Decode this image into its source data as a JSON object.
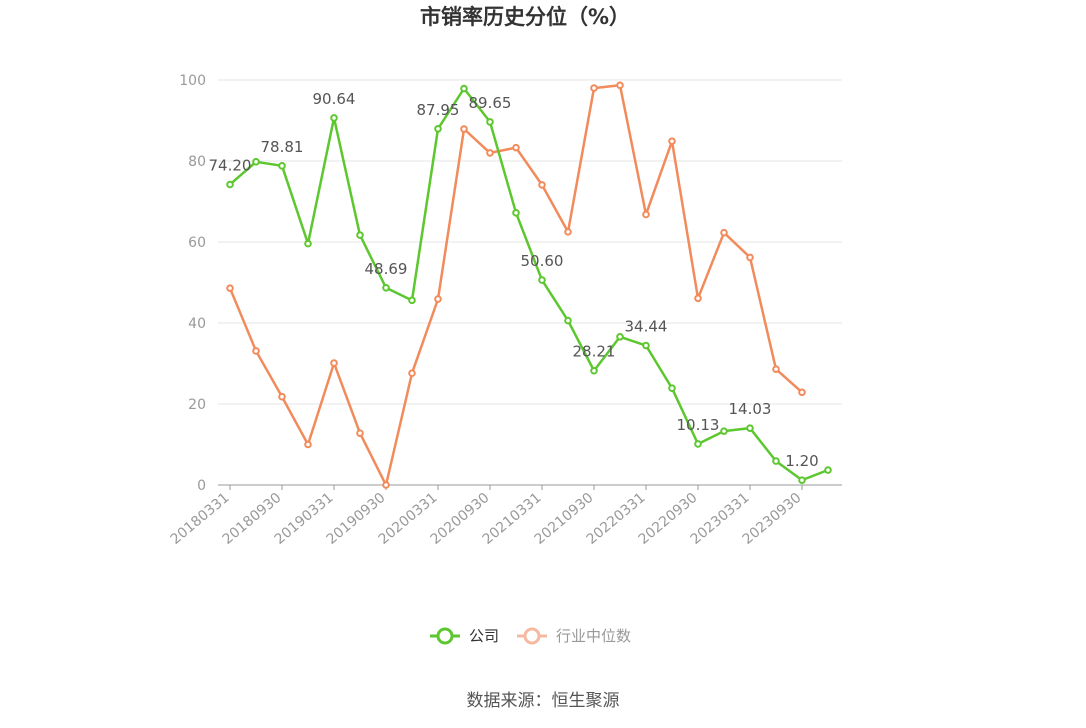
{
  "chart_data": {
    "type": "line",
    "title": "市销率历史分位（%）",
    "ylim": [
      0,
      100
    ],
    "yticks": [
      "0",
      "20",
      "40",
      "60",
      "80",
      "100"
    ],
    "x": [
      "20180331",
      "20180630",
      "20180930",
      "20181231",
      "20190331",
      "20190630",
      "20190930",
      "20191231",
      "20200331",
      "20200630",
      "20200930",
      "20201231",
      "20210331",
      "20210630",
      "20210930",
      "20211231",
      "20220331",
      "20220630",
      "20220930",
      "20221231",
      "20230331",
      "20230630",
      "20230930",
      "20231231"
    ],
    "xtick_labels": [
      "20180331",
      "20180930",
      "20190331",
      "20190930",
      "20200331",
      "20200930",
      "20210331",
      "20210930",
      "20220331",
      "20220930",
      "20230331",
      "20230930"
    ],
    "series": [
      {
        "name": "公司",
        "color": "#5cc72e",
        "values": [
          74.2,
          79.8,
          78.81,
          59.6,
          90.64,
          61.7,
          48.69,
          45.6,
          87.95,
          97.9,
          89.65,
          67.2,
          50.6,
          40.6,
          28.21,
          36.6,
          34.44,
          23.9,
          10.13,
          13.3,
          14.03,
          5.9,
          1.2,
          3.7
        ],
        "labels": [
          {
            "i": 0,
            "text": "74.20"
          },
          {
            "i": 2,
            "text": "78.81"
          },
          {
            "i": 4,
            "text": "90.64"
          },
          {
            "i": 6,
            "text": "48.69"
          },
          {
            "i": 8,
            "text": "87.95"
          },
          {
            "i": 10,
            "text": "89.65"
          },
          {
            "i": 12,
            "text": "50.60"
          },
          {
            "i": 14,
            "text": "28.21"
          },
          {
            "i": 16,
            "text": "34.44"
          },
          {
            "i": 18,
            "text": "10.13"
          },
          {
            "i": 20,
            "text": "14.03"
          },
          {
            "i": 22,
            "text": "1.20"
          }
        ]
      },
      {
        "name": "行业中位数",
        "color": "#f28b5b",
        "values": [
          48.6,
          33.1,
          21.8,
          10.0,
          30.1,
          12.8,
          0.0,
          27.6,
          45.9,
          87.9,
          82.0,
          83.3,
          74.1,
          62.5,
          98.0,
          98.7,
          66.8,
          84.9,
          46.1,
          62.3,
          56.2,
          28.6,
          22.9,
          null
        ]
      }
    ],
    "legend_position": "bottom-center",
    "grid": true
  },
  "source": "数据来源：恒生聚源",
  "legend_muted_color": "#f5b8a0"
}
